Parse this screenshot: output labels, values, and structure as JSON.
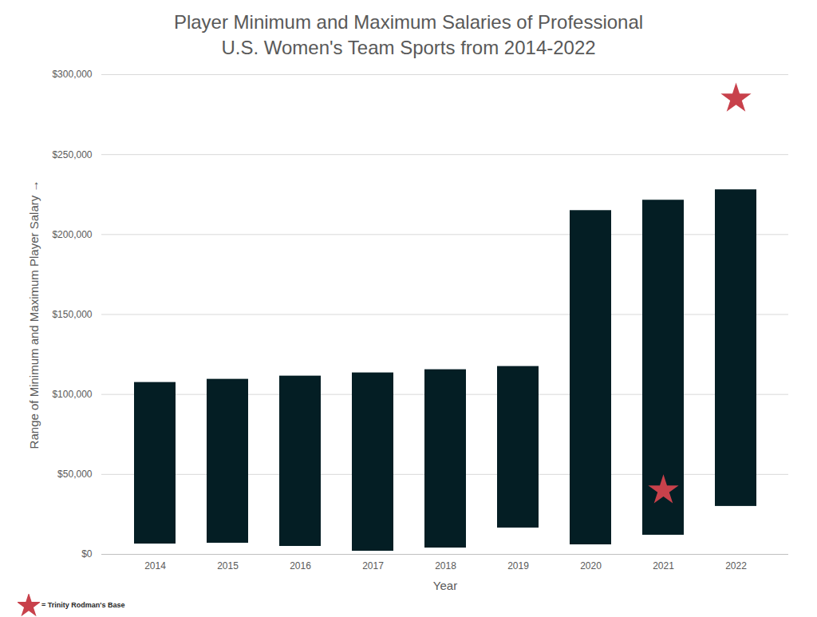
{
  "chart_data": {
    "type": "bar",
    "title": "Player Minimum and Maximum Salaries of Professional\nU.S. Women's Team Sports from 2014-2022",
    "x_label": "Year",
    "y_label": "Range of Minimum and Maximum Player Salary",
    "categories": [
      "2014",
      "2015",
      "2016",
      "2017",
      "2018",
      "2019",
      "2020",
      "2021",
      "2022"
    ],
    "low": [
      6500,
      7000,
      5000,
      2000,
      4000,
      16500,
      6000,
      12000,
      30000
    ],
    "high": [
      107500,
      109500,
      111500,
      113500,
      115500,
      117500,
      215000,
      221500,
      228000
    ],
    "color": "#041e24",
    "series": [
      {
        "name": "= Trinity Rodman's Base",
        "type": "scatter",
        "marker": "star",
        "color": "#c8414b",
        "values": [
          null,
          null,
          null,
          null,
          null,
          null,
          null,
          40000,
          285000
        ]
      }
    ],
    "ylim": [
      0,
      300000
    ],
    "yticks": [
      {
        "value": 0,
        "label": "$0"
      },
      {
        "value": 50000,
        "label": "$50,000"
      },
      {
        "value": 100000,
        "label": "$100,000"
      },
      {
        "value": 150000,
        "label": "$150,000"
      },
      {
        "value": 200000,
        "label": "$200,000"
      },
      {
        "value": 250000,
        "label": "$250,000"
      },
      {
        "value": 300000,
        "label": "$300,000"
      }
    ],
    "grid": true,
    "legend": "bottom-left"
  }
}
